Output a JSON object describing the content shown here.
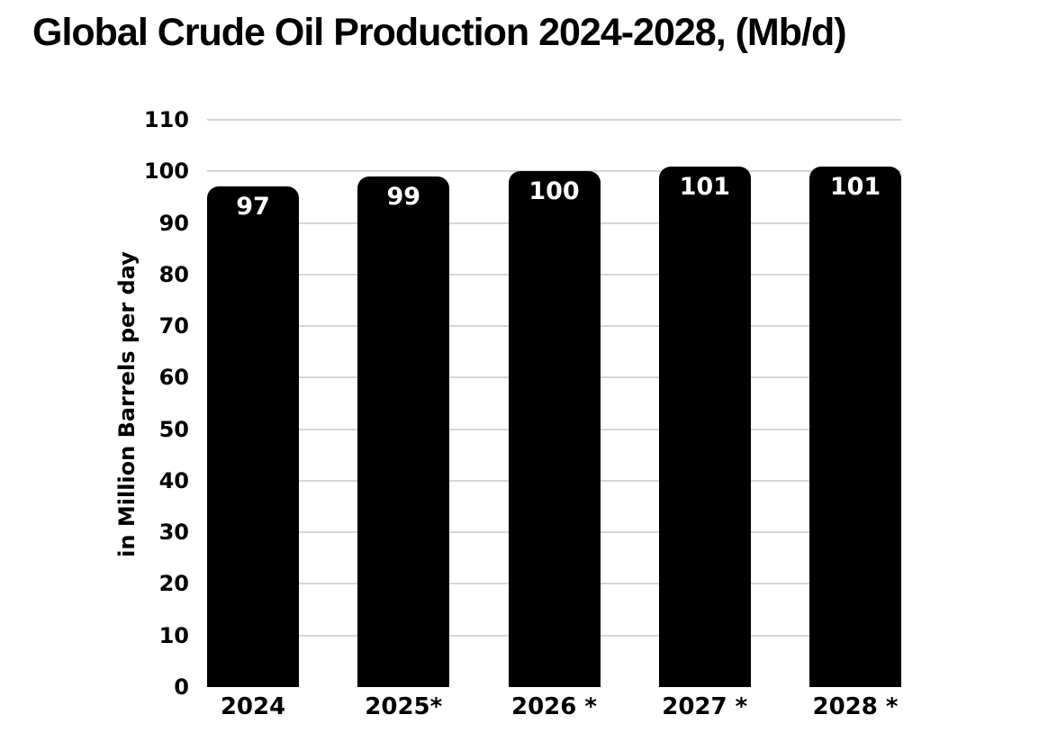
{
  "title": "Global Crude Oil Production 2024-2028, (Mb/d)",
  "y_axis_title": "in Million Barrels per day",
  "chart_data": {
    "type": "bar",
    "title": "Global Crude Oil Production 2024-2028, (Mb/d)",
    "categories": [
      "2024",
      "2025*",
      "2026 *",
      "2027 *",
      "2028 *"
    ],
    "values": [
      97,
      99,
      100,
      101,
      101
    ],
    "value_labels": [
      "97",
      "99",
      "100",
      "101",
      "101"
    ],
    "xlabel": "",
    "ylabel": "in Million Barrels per day",
    "ylim": [
      0,
      110
    ],
    "yticks": [
      0,
      10,
      20,
      30,
      40,
      50,
      60,
      70,
      80,
      90,
      100,
      110
    ],
    "grid": "horizontal",
    "gridlines_shown_for": [
      10,
      20,
      30,
      40,
      50,
      60,
      70,
      80,
      90,
      100,
      110
    ],
    "legend": "none",
    "colors": {
      "bar": "#000000",
      "bar_value_label": "#ffffff",
      "gridline": "#d6d6d6",
      "text": "#000000",
      "background": "#ffffff"
    }
  }
}
